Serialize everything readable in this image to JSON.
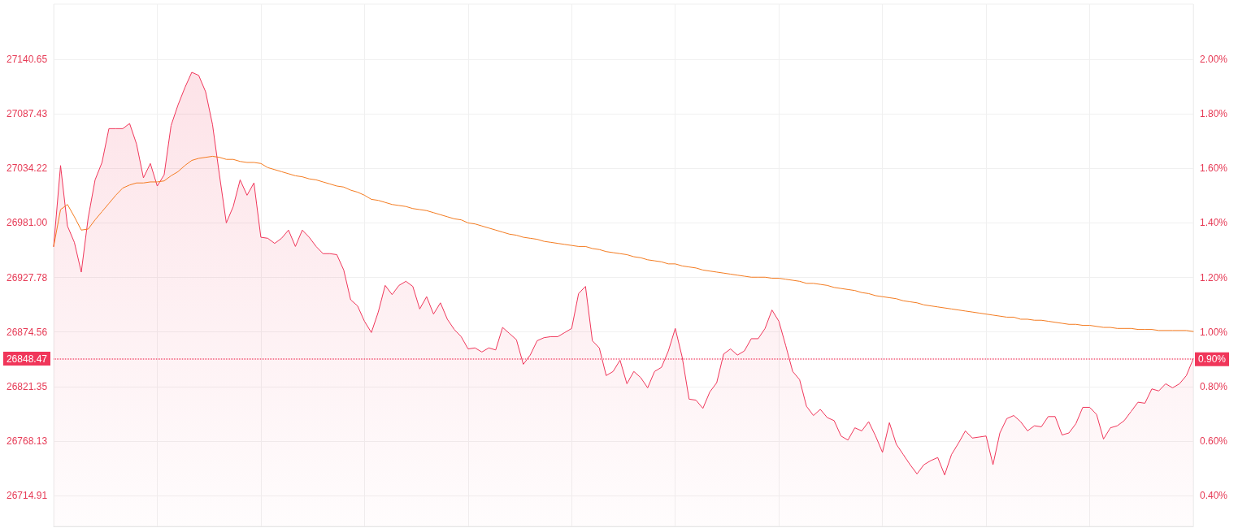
{
  "chart_data": {
    "type": "area",
    "categories": [
      null,
      null,
      null,
      null,
      null,
      null,
      null,
      null,
      null,
      null,
      null,
      null,
      null,
      null,
      null,
      null,
      null,
      null,
      null,
      null,
      null,
      null,
      null,
      null,
      null,
      null,
      null,
      null,
      null,
      null,
      null,
      null,
      null,
      null,
      null,
      null,
      null,
      null,
      null,
      null,
      null,
      null,
      null,
      null,
      null,
      null,
      null,
      null,
      null,
      null,
      null,
      null,
      null,
      null,
      null,
      null,
      null,
      null,
      null,
      null,
      null,
      null,
      null,
      null,
      null,
      null,
      null,
      null,
      null,
      null,
      null,
      null,
      null,
      null,
      null,
      null,
      null,
      null,
      null,
      null,
      null,
      null,
      null,
      null,
      null,
      null,
      null,
      null,
      null,
      null,
      null,
      null,
      null,
      null,
      null,
      null,
      null,
      null,
      null,
      null,
      null,
      null,
      null,
      null,
      null,
      null,
      null,
      null,
      null,
      null,
      null,
      null,
      null,
      null,
      null,
      null,
      null,
      null,
      null,
      null,
      null,
      null,
      null,
      null,
      null,
      null,
      null,
      null,
      null,
      null,
      null,
      null,
      null,
      null,
      null,
      null,
      null,
      null,
      null,
      null,
      null,
      null,
      null,
      null,
      null,
      null,
      null,
      null,
      null,
      null,
      null,
      null,
      null,
      null,
      null,
      null,
      null,
      null,
      null,
      null,
      null,
      null,
      null,
      null,
      null,
      null
    ],
    "series": [
      {
        "color": "#f0365a",
        "values": [
          26958,
          27037,
          26978,
          26962,
          26933,
          26986,
          27023,
          27040,
          27073,
          27073,
          27073,
          27078,
          27058,
          27025,
          27039,
          27017,
          27028,
          27076,
          27096,
          27113,
          27128,
          27125,
          27109,
          27077,
          27028,
          26981,
          26997,
          27023,
          27008,
          27020,
          26967,
          26966,
          26961,
          26966,
          26974,
          26958,
          26974,
          26967,
          26958,
          26951,
          26951,
          26950,
          26935,
          26906,
          26900,
          26885,
          26874,
          26894,
          26920,
          26911,
          26920,
          26924,
          26919,
          26897,
          26909,
          26892,
          26903,
          26887,
          26877,
          26870,
          26858,
          26859,
          26855,
          26859,
          26857,
          26879,
          26873,
          26867,
          26843,
          26852,
          26866,
          26869,
          26870,
          26870,
          26874,
          26878,
          26912,
          26919,
          26866,
          26859,
          26832,
          26836,
          26847,
          26824,
          26836,
          26830,
          26820,
          26836,
          26840,
          26856,
          26878,
          26850,
          26809,
          26808,
          26800,
          26816,
          26825,
          26853,
          26858,
          26852,
          26856,
          26868,
          26868,
          26878,
          26896,
          26885,
          26861,
          26836,
          26828,
          26802,
          26793,
          26799,
          26791,
          26788,
          26773,
          26769,
          26781,
          26778,
          26787,
          26773,
          26757,
          26786,
          26765,
          26755,
          26745,
          26736,
          26745,
          26749,
          26752,
          26735,
          26755,
          26766,
          26778,
          26771,
          26772,
          26773,
          26745,
          26776,
          26790,
          26793,
          26787,
          26778,
          26783,
          26782,
          26792,
          26792,
          26774,
          26776,
          26785,
          26801,
          26801,
          26794,
          26770,
          26781,
          26783,
          26788,
          26797,
          26806,
          26805,
          26819,
          26817,
          26824,
          26820,
          26824,
          26832,
          26848.47
        ]
      },
      {
        "type": "line",
        "color": "#f47b20",
        "values": [
          26958,
          26994,
          26999,
          26987,
          26974,
          26975,
          26984,
          26992,
          27000,
          27008,
          27015,
          27018,
          27020,
          27020,
          27021,
          27021,
          27022,
          27027,
          27031,
          27037,
          27042,
          27044,
          27045,
          27046,
          27045,
          27043,
          27043,
          27041,
          27040,
          27040,
          27039,
          27035,
          27033,
          27031,
          27029,
          27027,
          27026,
          27024,
          27023,
          27021,
          27019,
          27017,
          27016,
          27013,
          27011,
          27008,
          27004,
          27003,
          27001,
          26999,
          26998,
          26997,
          26995,
          26994,
          26993,
          26991,
          26989,
          26987,
          26985,
          26984,
          26981,
          26980,
          26978,
          26976,
          26974,
          26972,
          26970,
          26969,
          26967,
          26966,
          26965,
          26963,
          26962,
          26961,
          26960,
          26959,
          26958,
          26958,
          26956,
          26955,
          26953,
          26952,
          26951,
          26950,
          26948,
          26947,
          26945,
          26944,
          26943,
          26941,
          26941,
          26939,
          26938,
          26937,
          26935,
          26934,
          26933,
          26932,
          26931,
          26930,
          26929,
          26928,
          26928,
          26928,
          26927,
          26927,
          26926,
          26925,
          26924,
          26922,
          26922,
          26921,
          26920,
          26918,
          26917,
          26916,
          26915,
          26913,
          26912,
          26910,
          26909,
          26908,
          26907,
          26905,
          26904,
          26903,
          26901,
          26900,
          26899,
          26898,
          26897,
          26896,
          26895,
          26894,
          26893,
          26892,
          26891,
          26890,
          26889,
          26889,
          26887,
          26887,
          26886,
          26886,
          26885,
          26884,
          26883,
          26882,
          26882,
          26881,
          26881,
          26880,
          26879,
          26879,
          26878,
          26878,
          26878,
          26877,
          26877,
          26877,
          26876,
          26876,
          26876,
          26876,
          26876,
          26875
        ]
      }
    ],
    "ylim": [
      26684.8,
      27194.6
    ],
    "yticks": [
      {
        "value": 26714.91,
        "label": "26714.91"
      },
      {
        "value": 26768.13,
        "label": "26768.13"
      },
      {
        "value": 26821.35,
        "label": "26821.35"
      },
      {
        "value": 26874.56,
        "label": "26874.56"
      },
      {
        "value": 26927.78,
        "label": "26927.78"
      },
      {
        "value": 26981.0,
        "label": "26981.00"
      },
      {
        "value": 27034.22,
        "label": "27034.22"
      },
      {
        "value": 27087.43,
        "label": "27087.43"
      },
      {
        "value": 27140.65,
        "label": "27140.65"
      }
    ],
    "y2lim": [
      0.287,
      2.203
    ],
    "y2ticks": [
      {
        "value": 0.4,
        "label": "0.40%"
      },
      {
        "value": 0.6,
        "label": "0.60%"
      },
      {
        "value": 0.8,
        "label": "0.80%"
      },
      {
        "value": 1.0,
        "label": "1.00%"
      },
      {
        "value": 1.2,
        "label": "1.20%"
      },
      {
        "value": 1.4,
        "label": "1.40%"
      },
      {
        "value": 1.6,
        "label": "1.60%"
      },
      {
        "value": 1.8,
        "label": "1.80%"
      },
      {
        "value": 2.0,
        "label": "2.00%"
      }
    ],
    "ref_lines": [
      {
        "axis": "y",
        "value": 26848.47,
        "label": "26848.47",
        "color": "#f0365a",
        "line_style": "dotted"
      },
      {
        "axis": "y2",
        "value": 0.9,
        "label": "0.90%",
        "color": "#f0365a",
        "line_style": "dotted"
      }
    ],
    "grid": true,
    "tick_labels": "y",
    "marker": "none"
  }
}
